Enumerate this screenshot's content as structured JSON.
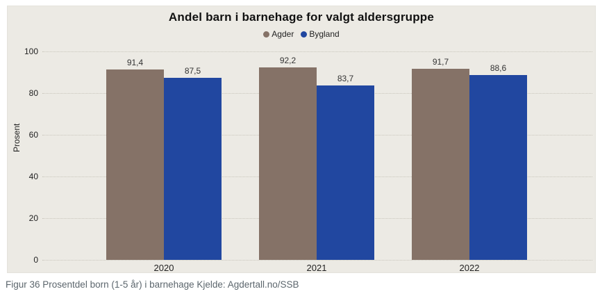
{
  "chart_data": {
    "type": "bar",
    "title": "Andel barn i barnehage for valgt aldersgruppe",
    "categories": [
      "2020",
      "2021",
      "2022"
    ],
    "series": [
      {
        "name": "Agder",
        "color": "#857267",
        "values": [
          91.4,
          92.2,
          91.7
        ]
      },
      {
        "name": "Bygland",
        "color": "#2147a0",
        "values": [
          87.5,
          83.7,
          88.6
        ]
      }
    ],
    "value_labels": [
      [
        "91,4",
        "92,2",
        "91,7"
      ],
      [
        "87,5",
        "83,7",
        "88,6"
      ]
    ],
    "xlabel": "",
    "ylabel": "Prosent",
    "ylim": [
      0,
      100
    ],
    "yticks": [
      0,
      20,
      40,
      60,
      80,
      100
    ],
    "grid": "horizontal-dotted",
    "legend_position": "top-center",
    "decimal_separator": ","
  },
  "caption": "Figur 36 Prosentdel born (1-5 år) i barnehage Kjelde: Agdertall.no/SSB",
  "colors": {
    "panel_background": "#eceae4",
    "page_background": "#ffffff",
    "gridline": "#c9c6bc",
    "caption_text": "#5c666d",
    "agder_bar": "#857267",
    "bygland_bar": "#2147a0"
  }
}
